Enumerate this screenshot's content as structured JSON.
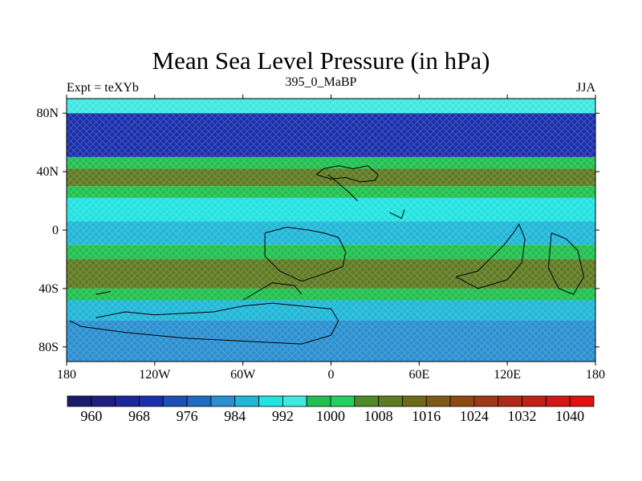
{
  "title": "Mean Sea Level Pressure (in hPa)",
  "subtitle_left": "Expt = teXYb",
  "subtitle_center": "395_0_MaBP",
  "subtitle_right": "JJA",
  "map": {
    "projection": "cylindrical-equidistant",
    "lon_range": [
      -180,
      180
    ],
    "lat_range": [
      -90,
      90
    ],
    "x_ticks": [
      {
        "value": -180,
        "label": "180"
      },
      {
        "value": -120,
        "label": "120W"
      },
      {
        "value": -60,
        "label": "60W"
      },
      {
        "value": 0,
        "label": "0"
      },
      {
        "value": 60,
        "label": "60E"
      },
      {
        "value": 120,
        "label": "120E"
      },
      {
        "value": 180,
        "label": "180"
      }
    ],
    "y_ticks": [
      {
        "value": 80,
        "label": "80N"
      },
      {
        "value": 40,
        "label": "40N"
      },
      {
        "value": 0,
        "label": "0"
      },
      {
        "value": -40,
        "label": "40S"
      },
      {
        "value": -80,
        "label": "80S"
      }
    ],
    "field_bands": [
      {
        "lat_from": 90,
        "lat_to": 80,
        "value": 992
      },
      {
        "lat_from": 80,
        "lat_to": 50,
        "value": 970
      },
      {
        "lat_from": 50,
        "lat_to": 42,
        "value": 998
      },
      {
        "lat_from": 42,
        "lat_to": 30,
        "value": 1008
      },
      {
        "lat_from": 30,
        "lat_to": 22,
        "value": 998
      },
      {
        "lat_from": 22,
        "lat_to": 6,
        "value": 990
      },
      {
        "lat_from": 6,
        "lat_to": -10,
        "value": 986
      },
      {
        "lat_from": -10,
        "lat_to": -20,
        "value": 996
      },
      {
        "lat_from": -20,
        "lat_to": -40,
        "value": 1008
      },
      {
        "lat_from": -40,
        "lat_to": -48,
        "value": 998
      },
      {
        "lat_from": -48,
        "lat_to": -62,
        "value": 986
      },
      {
        "lat_from": -62,
        "lat_to": -90,
        "value": 980
      }
    ],
    "coastline_color": "#000000"
  },
  "colorbar": {
    "colors": [
      "#1a1a6b",
      "#1e1e82",
      "#1d2799",
      "#1a2fab",
      "#1d4fb5",
      "#1f6bc2",
      "#2a8fd0",
      "#20b7d8",
      "#22e3e0",
      "#3fe8e0",
      "#20c050",
      "#25d060",
      "#4e8a2a",
      "#5e7a22",
      "#6e6a1a",
      "#7e5a16",
      "#8e4814",
      "#9e3816",
      "#ae2a18",
      "#c02018",
      "#d01818",
      "#e01010"
    ],
    "labels": [
      "960",
      "968",
      "976",
      "984",
      "992",
      "1000",
      "1008",
      "1016",
      "1024",
      "1032",
      "1040"
    ]
  }
}
